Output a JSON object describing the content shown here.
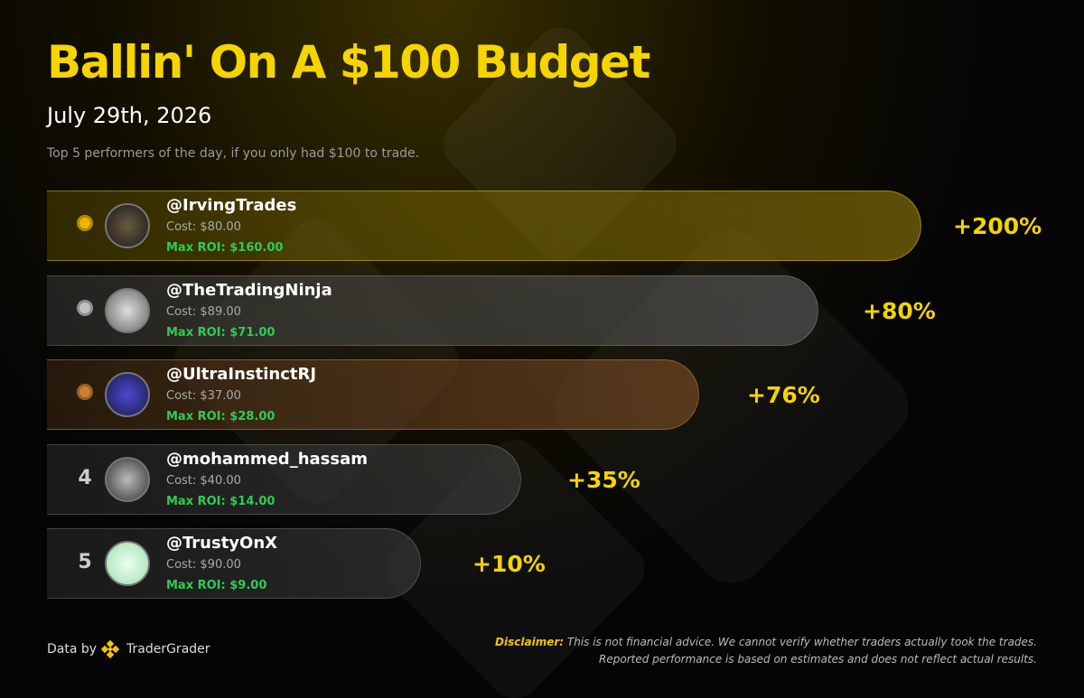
{
  "header": {
    "title": "Ballin' On A $100 Budget",
    "date": "July 29th, 2026",
    "subtitle": "Top 5 performers of the day, if you only had $100 to trade."
  },
  "rows": [
    {
      "handle": "@IrvingTrades",
      "cost": "Cost: $80.00",
      "max_roi": "Max ROI: $160.00",
      "roi": "+200%"
    },
    {
      "handle": "@TheTradingNinja",
      "cost": "Cost: $89.00",
      "max_roi": "Max ROI: $71.00",
      "roi": "+80%"
    },
    {
      "handle": "@UltraInstinctRJ",
      "cost": "Cost: $37.00",
      "max_roi": "Max ROI: $28.00",
      "roi": "+76%"
    },
    {
      "rank": "4",
      "handle": "@mohammed_hassam",
      "cost": "Cost: $40.00",
      "max_roi": "Max ROI: $14.00",
      "roi": "+35%"
    },
    {
      "rank": "5",
      "handle": "@TrustyOnX",
      "cost": "Cost: $90.00",
      "max_roi": "Max ROI: $9.00",
      "roi": "+10%"
    }
  ],
  "footer": {
    "data_by": "Data by",
    "brand": "TraderGrader",
    "disclaimer_label": "Disclaimer:",
    "disclaimer_line1": "This is not financial advice. We cannot verify whether traders actually took the trades.",
    "disclaimer_line2": "Reported performance is based on estimates and does not reflect actual results."
  }
}
